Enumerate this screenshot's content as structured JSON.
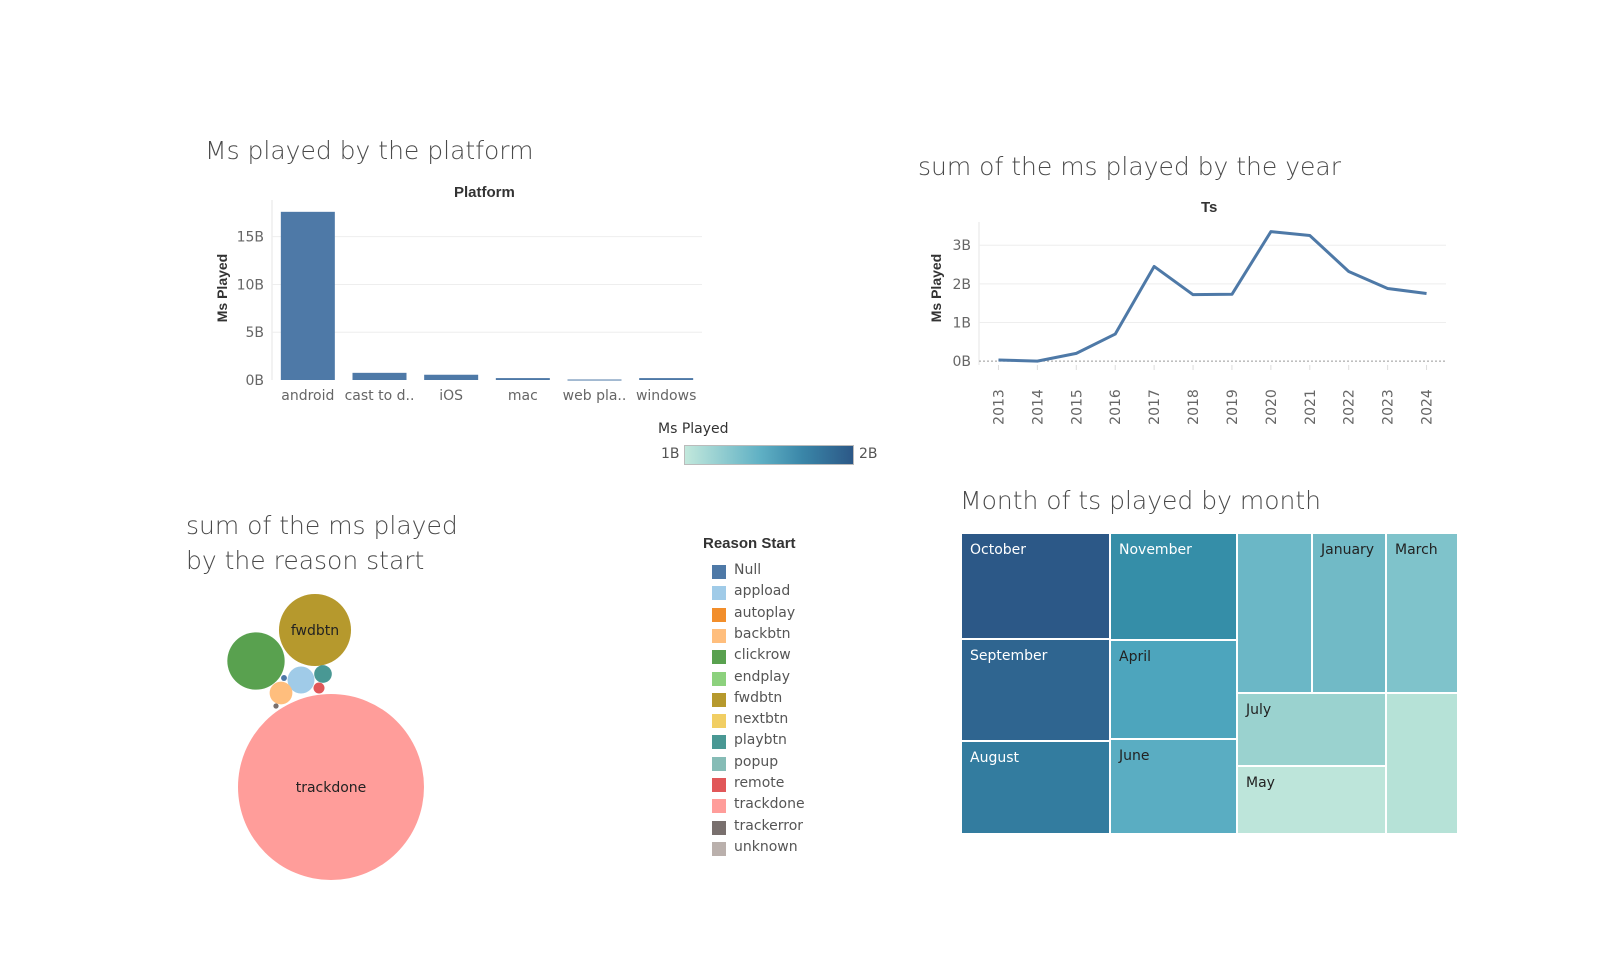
{
  "colors": {
    "bar": "#4e79a7",
    "line": "#4e79a7",
    "grad_start": "#c2e8dc",
    "grad_end": "#2c5887"
  },
  "chart_data": [
    {
      "type": "bar",
      "title": "Ms played by the platform",
      "header": "Platform",
      "ylabel": "Ms Played",
      "categories": [
        "android",
        "cast to d..",
        "iOS",
        "mac",
        "web pla..",
        "windows"
      ],
      "values": [
        17.6,
        0.75,
        0.55,
        0.2,
        0.05,
        0.2
      ],
      "yticks": [
        "15B",
        "10B",
        "5B",
        "0B"
      ],
      "ylim": [
        0,
        18
      ]
    },
    {
      "type": "line",
      "title": "sum of the ms played by the year",
      "header": "Ts",
      "ylabel": "Ms Played",
      "x": [
        "2013",
        "2014",
        "2015",
        "2016",
        "2017",
        "2018",
        "2019",
        "2020",
        "2021",
        "2022",
        "2023",
        "2024"
      ],
      "values": [
        0.03,
        0.0,
        0.2,
        0.7,
        2.45,
        1.72,
        1.73,
        3.35,
        3.25,
        2.32,
        1.88,
        1.75
      ],
      "yticks": [
        "3B",
        "2B",
        "1B",
        "0B"
      ],
      "ylim": [
        -0.1,
        3.6
      ]
    },
    {
      "type": "bubble",
      "title_line1": "sum of the ms played",
      "title_line2": "by the reason start",
      "bubbles": [
        {
          "name": "trackdone",
          "label": "trackdone",
          "color": "#ff9d9a",
          "size": 100
        },
        {
          "name": "fwdbtn",
          "label": "fwdbtn",
          "color": "#b6992d",
          "size": 15
        },
        {
          "name": "clickrow",
          "label": "",
          "color": "#59a14f",
          "size": 9.5
        },
        {
          "name": "appload",
          "label": "",
          "color": "#a0cbe8",
          "size": 2.1
        },
        {
          "name": "playbtn",
          "label": "",
          "color": "#499894",
          "size": 0.9
        },
        {
          "name": "backbtn",
          "label": "",
          "color": "#ffbe7d",
          "size": 1.5
        },
        {
          "name": "remote",
          "label": "",
          "color": "#e15759",
          "size": 0.35
        },
        {
          "name": "Null",
          "label": "",
          "color": "#4e79a7",
          "size": 0.1
        },
        {
          "name": "trackerror",
          "label": "",
          "color": "#79706e",
          "size": 0.08
        }
      ]
    },
    {
      "type": "treemap",
      "title": "Month of ts played by month",
      "color_legend": {
        "title": "Ms Played",
        "min_label": "1B",
        "max_label": "2B"
      },
      "cells": [
        {
          "label": "October",
          "color": "#2c5887",
          "text": "#ffffff"
        },
        {
          "label": "September",
          "color": "#2f6590",
          "text": "#ffffff"
        },
        {
          "label": "August",
          "color": "#337c9f",
          "text": "#ffffff"
        },
        {
          "label": "November",
          "color": "#358ea8",
          "text": "#ffffff"
        },
        {
          "label": "April",
          "color": "#4da5bd",
          "text": "#222222"
        },
        {
          "label": "June",
          "color": "#5aadc2",
          "text": "#222222"
        },
        {
          "label": "",
          "color": "#6bb7c6",
          "text": "#222222"
        },
        {
          "label": "January",
          "color": "#71bac6",
          "text": "#222222"
        },
        {
          "label": "March",
          "color": "#7fc3cb",
          "text": "#222222"
        },
        {
          "label": "July",
          "color": "#9ad2cf",
          "text": "#222222"
        },
        {
          "label": "May",
          "color": "#bde5da",
          "text": "#222222"
        },
        {
          "label": "",
          "color": "#b6e2d7",
          "text": "#222222"
        }
      ]
    }
  ],
  "reason_legend": {
    "title": "Reason Start",
    "items": [
      {
        "label": "Null",
        "color": "#4e79a7"
      },
      {
        "label": "appload",
        "color": "#a0cbe8"
      },
      {
        "label": "autoplay",
        "color": "#f28e2b"
      },
      {
        "label": "backbtn",
        "color": "#ffbe7d"
      },
      {
        "label": "clickrow",
        "color": "#59a14f"
      },
      {
        "label": "endplay",
        "color": "#8cd17d"
      },
      {
        "label": "fwdbtn",
        "color": "#b6992d"
      },
      {
        "label": "nextbtn",
        "color": "#f1ce63"
      },
      {
        "label": "playbtn",
        "color": "#499894"
      },
      {
        "label": "popup",
        "color": "#86bcb6"
      },
      {
        "label": "remote",
        "color": "#e15759"
      },
      {
        "label": "trackdone",
        "color": "#ff9d9a"
      },
      {
        "label": "trackerror",
        "color": "#79706e"
      },
      {
        "label": "unknown",
        "color": "#bab0ac"
      }
    ]
  }
}
